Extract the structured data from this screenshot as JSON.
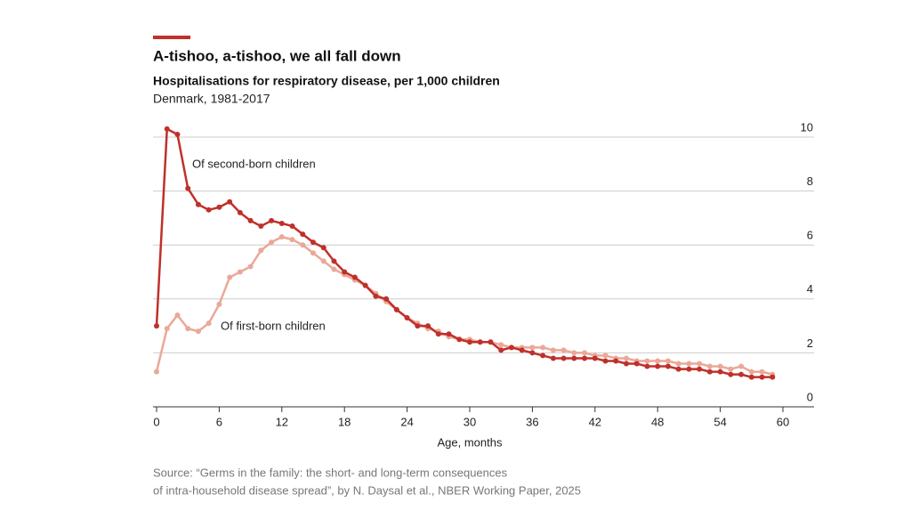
{
  "chart_data": {
    "type": "line",
    "title": "A-tishoo, a-tishoo, we all fall down",
    "subtitle": "Hospitalisations for respiratory disease, per 1,000 children",
    "subtitle2": "Denmark, 1981-2017",
    "x_label": "Age, months",
    "x": [
      0,
      1,
      2,
      3,
      4,
      5,
      6,
      7,
      8,
      9,
      10,
      11,
      12,
      13,
      14,
      15,
      16,
      17,
      18,
      19,
      20,
      21,
      22,
      23,
      24,
      25,
      26,
      27,
      28,
      29,
      30,
      31,
      32,
      33,
      34,
      35,
      36,
      37,
      38,
      39,
      40,
      41,
      42,
      43,
      44,
      45,
      46,
      47,
      48,
      49,
      50,
      51,
      52,
      53,
      54,
      55,
      56,
      57,
      58,
      59
    ],
    "series": [
      {
        "name": "Of second-born children",
        "color": "#c0302a",
        "values": [
          3.0,
          10.3,
          10.1,
          8.1,
          7.5,
          7.3,
          7.4,
          7.6,
          7.2,
          6.9,
          6.7,
          6.9,
          6.8,
          6.7,
          6.4,
          6.1,
          5.9,
          5.4,
          5.0,
          4.8,
          4.5,
          4.1,
          4.0,
          3.6,
          3.3,
          3.0,
          3.0,
          2.7,
          2.7,
          2.5,
          2.4,
          2.4,
          2.4,
          2.1,
          2.2,
          2.1,
          2.0,
          1.9,
          1.8,
          1.8,
          1.8,
          1.8,
          1.8,
          1.7,
          1.7,
          1.6,
          1.6,
          1.5,
          1.5,
          1.5,
          1.4,
          1.4,
          1.4,
          1.3,
          1.3,
          1.2,
          1.2,
          1.1,
          1.1,
          1.1
        ]
      },
      {
        "name": "Of first-born children",
        "color": "#eaa898",
        "values": [
          1.3,
          2.9,
          3.4,
          2.9,
          2.8,
          3.1,
          3.8,
          4.8,
          5.0,
          5.2,
          5.8,
          6.1,
          6.3,
          6.2,
          6.0,
          5.7,
          5.4,
          5.1,
          4.9,
          4.7,
          4.5,
          4.2,
          3.9,
          3.6,
          3.3,
          3.1,
          2.9,
          2.8,
          2.6,
          2.5,
          2.5,
          2.4,
          2.4,
          2.3,
          2.2,
          2.2,
          2.2,
          2.2,
          2.1,
          2.1,
          2.0,
          2.0,
          1.9,
          1.9,
          1.8,
          1.8,
          1.7,
          1.7,
          1.7,
          1.7,
          1.6,
          1.6,
          1.6,
          1.5,
          1.5,
          1.4,
          1.5,
          1.3,
          1.3,
          1.2
        ]
      }
    ],
    "xlim": [
      0,
      60
    ],
    "xticks": [
      0,
      6,
      12,
      18,
      24,
      30,
      36,
      42,
      48,
      54,
      60
    ],
    "ylim": [
      0,
      10
    ],
    "yticks": [
      0,
      2,
      4,
      6,
      8,
      10
    ],
    "grid": true,
    "source": [
      "Source: “Germs in the family: the short- and long-term consequences",
      "of intra-household disease spread”, by N. Daysal et al., NBER Working Paper, 2025"
    ]
  }
}
